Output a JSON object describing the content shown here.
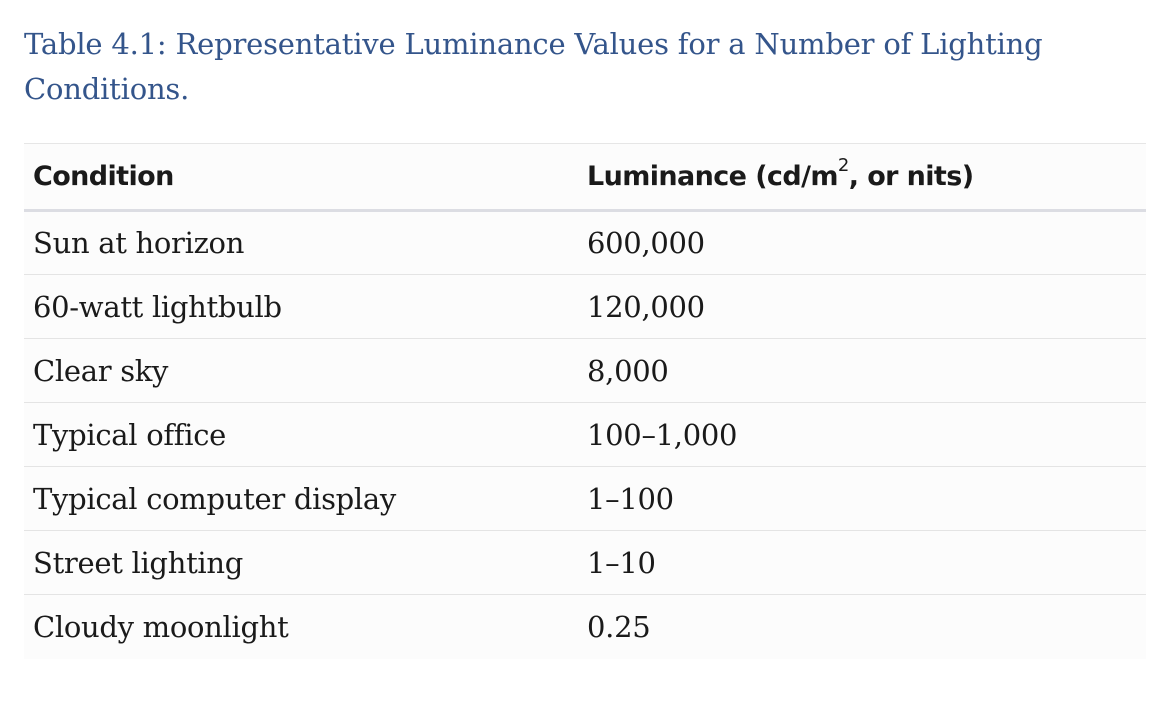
{
  "caption": "Table 4.1: Representative Luminance Values for a Number of Lighting Conditions.",
  "table": {
    "header": {
      "condition": "Condition",
      "luminance_prefix": "Luminance (cd/m",
      "luminance_sup": "2",
      "luminance_suffix": ", or nits)"
    },
    "rows": [
      {
        "condition": "Sun at horizon",
        "luminance": "600,000"
      },
      {
        "condition": "60-watt lightbulb",
        "luminance": "120,000"
      },
      {
        "condition": "Clear sky",
        "luminance": "8,000"
      },
      {
        "condition": "Typical office",
        "luminance": "100–1,000"
      },
      {
        "condition": "Typical computer display",
        "luminance": "1–100"
      },
      {
        "condition": "Street lighting",
        "luminance": "1–10"
      },
      {
        "condition": "Cloudy moonlight",
        "luminance": "0.25"
      }
    ]
  },
  "colors": {
    "caption": "#34558b",
    "text": "#1a1a1a",
    "header_rule": "#dcdde3",
    "row_rule": "#e4e4e4"
  }
}
